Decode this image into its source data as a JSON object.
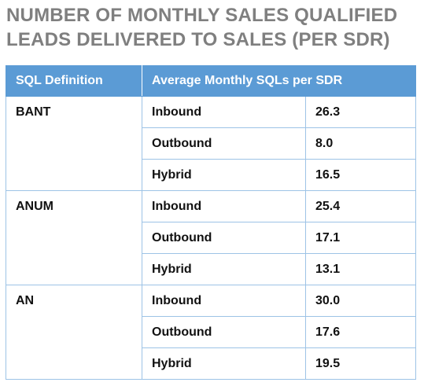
{
  "title": {
    "line1": "NUMBER OF MONTHLY SALES QUALIFIED",
    "line2": "LEADS DELIVERED TO SALES (PER SDR)"
  },
  "table": {
    "headers": [
      "SQL Definition",
      "Average Monthly SQLs per SDR"
    ],
    "groups": [
      {
        "definition": "BANT",
        "rows": [
          {
            "type": "Inbound",
            "value": "26.3"
          },
          {
            "type": "Outbound",
            "value": "8.0"
          },
          {
            "type": "Hybrid",
            "value": "16.5"
          }
        ]
      },
      {
        "definition": "ANUM",
        "rows": [
          {
            "type": "Inbound",
            "value": "25.4"
          },
          {
            "type": "Outbound",
            "value": "17.1"
          },
          {
            "type": "Hybrid",
            "value": "13.1"
          }
        ]
      },
      {
        "definition": "AN",
        "rows": [
          {
            "type": "Inbound",
            "value": "30.0"
          },
          {
            "type": "Outbound",
            "value": "17.6"
          },
          {
            "type": "Hybrid",
            "value": "19.5"
          }
        ]
      }
    ]
  },
  "colors": {
    "header_bg": "#5b9bd5",
    "grid": "#9dc3e6",
    "title": "#7f7f7f"
  },
  "chart_data": {
    "type": "table",
    "title": "NUMBER OF MONTHLY SALES QUALIFIED LEADS DELIVERED TO SALES (PER SDR)",
    "columns": [
      "SQL Definition",
      "Average Monthly SQLs per SDR"
    ],
    "categories": [
      "BANT",
      "ANUM",
      "AN"
    ],
    "series": [
      {
        "name": "Inbound",
        "values": [
          26.3,
          25.4,
          30.0
        ]
      },
      {
        "name": "Outbound",
        "values": [
          8.0,
          17.1,
          17.6
        ]
      },
      {
        "name": "Hybrid",
        "values": [
          16.5,
          13.1,
          19.5
        ]
      }
    ]
  }
}
